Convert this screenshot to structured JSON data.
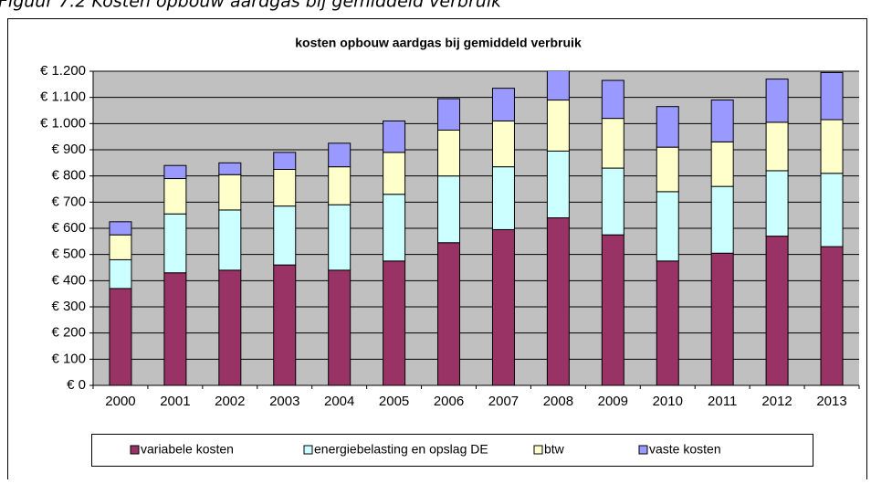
{
  "figure_caption": "Figuur 7.2   Kosten opbouw aardgas bij gemiddeld verbruik",
  "chart_data": {
    "type": "stacked_bar",
    "title": "kosten opbouw aardgas bij gemiddeld verbruik",
    "categories": [
      "2000",
      "2001",
      "2002",
      "2003",
      "2004",
      "2005",
      "2006",
      "2007",
      "2008",
      "2009",
      "2010",
      "2011",
      "2012",
      "2013"
    ],
    "series": [
      {
        "name": "variabele kosten",
        "color": "#993366",
        "values": [
          370,
          430,
          440,
          460,
          440,
          475,
          545,
          595,
          640,
          575,
          475,
          505,
          570,
          530
        ]
      },
      {
        "name": "energiebelasting en opslag DE",
        "color": "#ccffff",
        "values": [
          110,
          225,
          230,
          225,
          250,
          255,
          255,
          240,
          255,
          255,
          265,
          255,
          250,
          280
        ]
      },
      {
        "name": "btw",
        "color": "#ffffcc",
        "values": [
          95,
          135,
          135,
          140,
          145,
          160,
          175,
          175,
          195,
          190,
          170,
          170,
          185,
          205
        ]
      },
      {
        "name": "vaste kosten",
        "color": "#9999ff",
        "values": [
          50,
          50,
          45,
          65,
          90,
          120,
          120,
          125,
          120,
          145,
          155,
          160,
          165,
          180
        ]
      }
    ],
    "ylim": [
      0,
      1200
    ],
    "yticks": [
      {
        "value": 0,
        "label": "€ 0"
      },
      {
        "value": 100,
        "label": "€ 100"
      },
      {
        "value": 200,
        "label": "€ 200"
      },
      {
        "value": 300,
        "label": "€ 300"
      },
      {
        "value": 400,
        "label": "€ 400"
      },
      {
        "value": 500,
        "label": "€ 500"
      },
      {
        "value": 600,
        "label": "€ 600"
      },
      {
        "value": 700,
        "label": "€ 700"
      },
      {
        "value": 800,
        "label": "€ 800"
      },
      {
        "value": 900,
        "label": "€ 900"
      },
      {
        "value": 1000,
        "label": "€ 1.000"
      },
      {
        "value": 1100,
        "label": "€ 1.100"
      },
      {
        "value": 1200,
        "label": "€ 1.200"
      }
    ],
    "grid": true,
    "legend": "bottom",
    "plot_background": "#c0c0c0"
  }
}
